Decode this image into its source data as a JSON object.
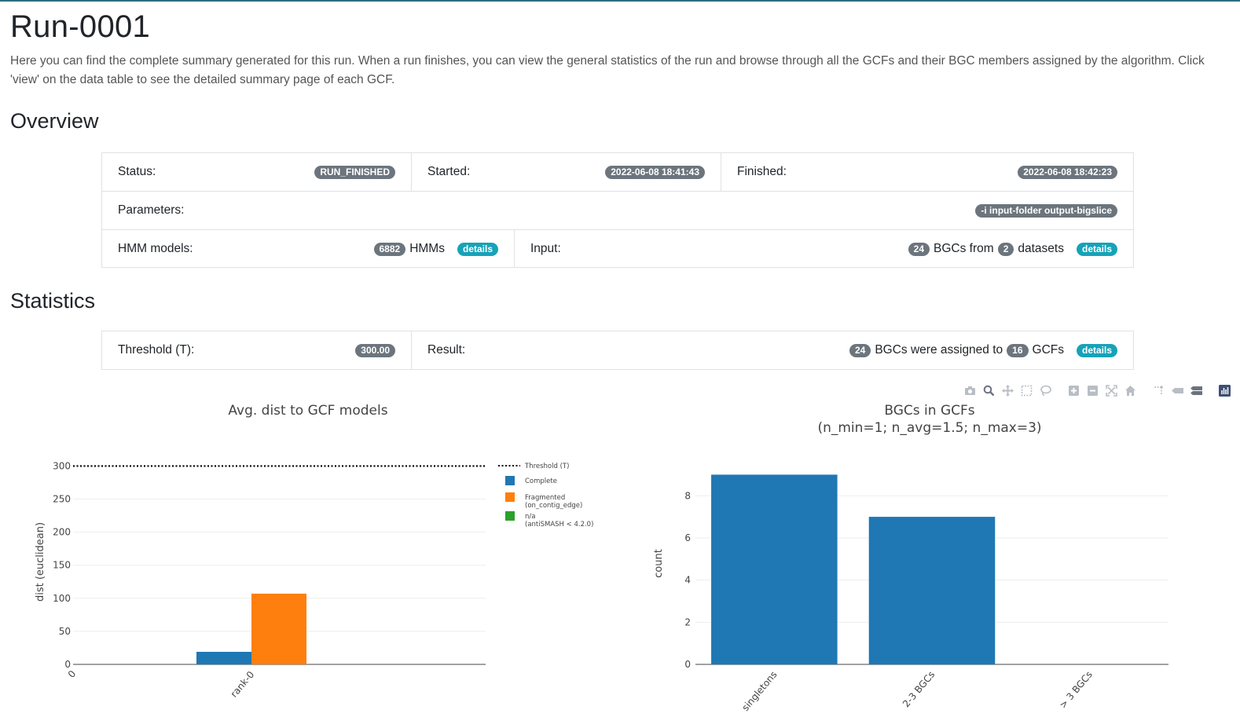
{
  "page": {
    "title": "Run-0001",
    "intro": "Here you can find the complete summary generated for this run. When a run finishes, you can view the general statistics of the run and browse through all the GCFs and their BGC members assigned by the algorithm. Click 'view' on the data table to see the detailed summary page of each GCF."
  },
  "overview": {
    "heading": "Overview",
    "status_label": "Status:",
    "status_value": "RUN_FINISHED",
    "started_label": "Started:",
    "started_value": "2022-06-08 18:41:43",
    "finished_label": "Finished:",
    "finished_value": "2022-06-08 18:42:23",
    "parameters_label": "Parameters:",
    "parameters_value": "-i input-folder output-bigslice",
    "hmm_label": "HMM models:",
    "hmm_count": "6882",
    "hmm_unit": "HMMs",
    "hmm_details": "details",
    "input_label": "Input:",
    "input_bgc_count": "24",
    "input_bgc_text": "BGCs from",
    "input_dataset_count": "2",
    "input_dataset_text": "datasets",
    "input_details": "details"
  },
  "statistics": {
    "heading": "Statistics",
    "threshold_label": "Threshold (T):",
    "threshold_value": "300.00",
    "result_label": "Result:",
    "result_bgc_count": "24",
    "result_text1": "BGCs were assigned to",
    "result_gcf_count": "16",
    "result_text2": "GCFs",
    "result_details": "details"
  },
  "toolbar": {
    "icons": [
      "camera-icon",
      "zoom-icon",
      "pan-icon",
      "box-select-icon",
      "lasso-select-icon",
      "zoom-in-icon",
      "zoom-out-icon",
      "autoscale-icon",
      "reset-axes-icon",
      "spike-lines-icon",
      "hover-closest-icon",
      "hover-compare-icon",
      "plotly-logo-icon"
    ]
  },
  "chart_data": [
    {
      "type": "bar",
      "title": "Avg. dist to GCF models",
      "xlabel": "",
      "ylabel": "dist (euclidean)",
      "categories": [
        "rank-0"
      ],
      "series": [
        {
          "name": "Complete",
          "color": "#1f77b4",
          "values": [
            19
          ]
        },
        {
          "name": "Fragmented",
          "name_sub": "(on_contig_edge)",
          "color": "#ff7f0e",
          "values": [
            107
          ]
        },
        {
          "name": "n/a",
          "name_sub": "(antiSMASH < 4.2.0)",
          "color": "#2ca02c",
          "values": [
            0
          ]
        }
      ],
      "threshold": {
        "name": "Threshold (T)",
        "value": 300
      },
      "ylim": [
        0,
        310
      ],
      "yticks": [
        0,
        50,
        100,
        150,
        200,
        250,
        300
      ],
      "x_extra_tick": "0",
      "grid": true,
      "legend_position": "right"
    },
    {
      "type": "bar",
      "title": "BGCs in GCFs",
      "subtitle": "(n_min=1; n_avg=1.5; n_max=3)",
      "xlabel": "",
      "ylabel": "count",
      "categories": [
        "singletons",
        "2-3 BGCs",
        "> 3 BGCs"
      ],
      "values": [
        9,
        7,
        0
      ],
      "color": "#1f77b4",
      "ylim": [
        0,
        9.5
      ],
      "yticks": [
        0,
        2,
        4,
        6,
        8
      ],
      "grid": true
    }
  ]
}
